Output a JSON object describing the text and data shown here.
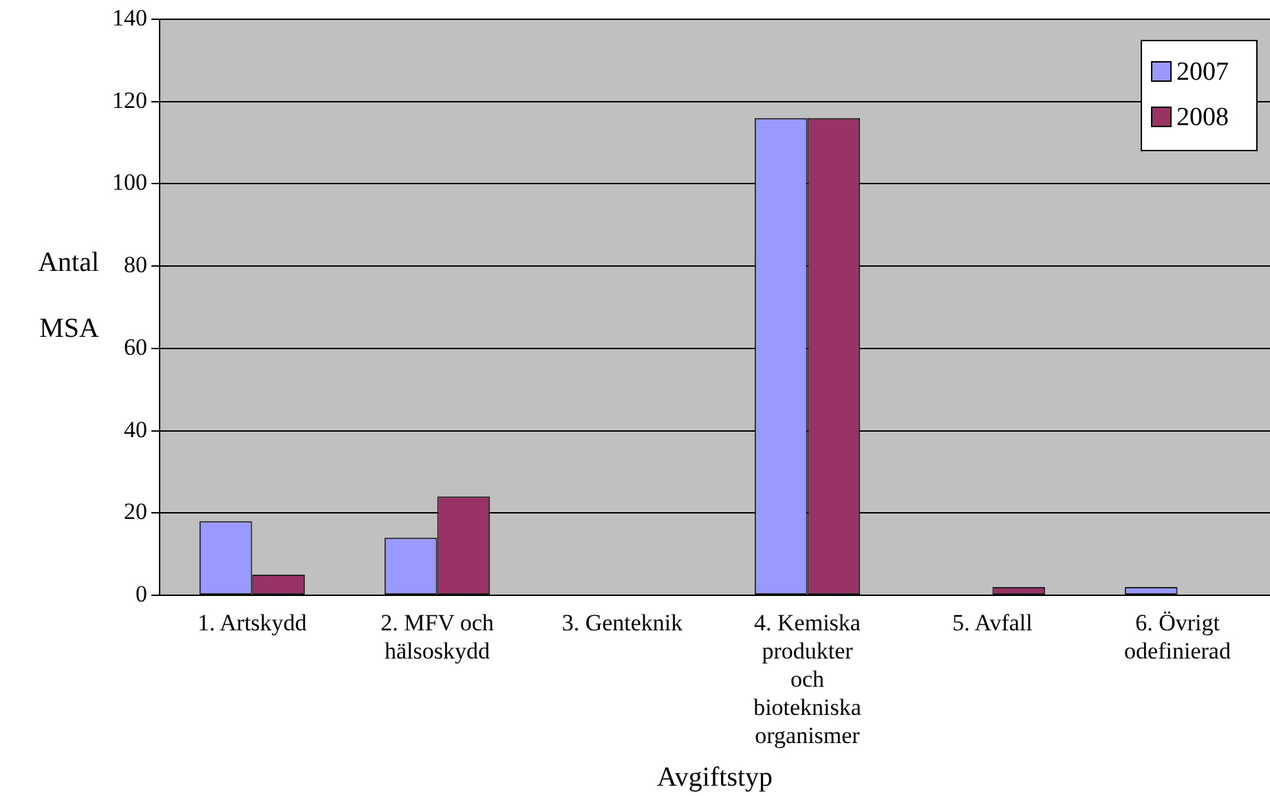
{
  "chart_data": {
    "type": "bar",
    "xlabel": "Avgiftstyp",
    "ylabel": "Antal\nMSA",
    "categories": [
      "1. Artskydd",
      "2. MFV och\nhälsoskydd",
      "3. Genteknik",
      "4. Kemiska\nprodukter\noch\nbiotekniska\norganismer",
      "5. Avfall",
      "6. Övrigt\nodefinierad"
    ],
    "series": [
      {
        "name": "2007",
        "color": "#9999ff",
        "values": [
          18,
          14,
          0,
          116,
          0,
          2
        ]
      },
      {
        "name": "2008",
        "color": "#993366",
        "values": [
          5,
          24,
          0,
          116,
          2,
          0
        ]
      }
    ],
    "ylim": [
      0,
      140
    ],
    "yticks": [
      0,
      20,
      40,
      60,
      80,
      100,
      120,
      140
    ],
    "grid": "y",
    "legend": "top right"
  }
}
